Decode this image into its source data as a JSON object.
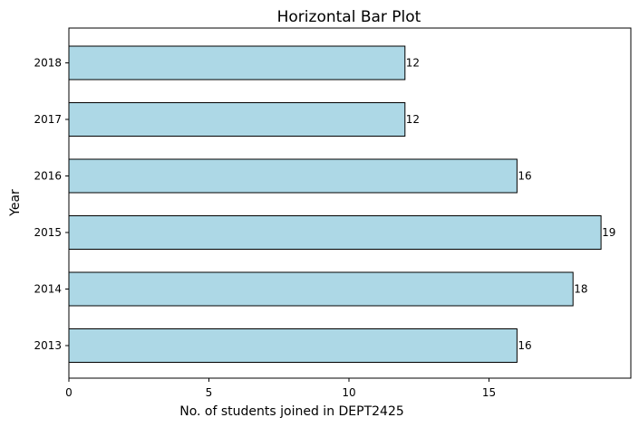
{
  "chart_data": {
    "type": "bar",
    "orientation": "horizontal",
    "title": "Horizontal Bar Plot",
    "xlabel": "No. of students joined in DEPT2425",
    "ylabel": "Year",
    "categories": [
      "2013",
      "2014",
      "2015",
      "2016",
      "2017",
      "2018"
    ],
    "values": [
      16,
      18,
      19,
      16,
      12,
      12
    ],
    "xlim": [
      0,
      20
    ],
    "xticks": [
      0,
      5,
      10,
      15
    ],
    "grid": false,
    "bar_color": "#add8e6",
    "edge_color": "#000000"
  }
}
